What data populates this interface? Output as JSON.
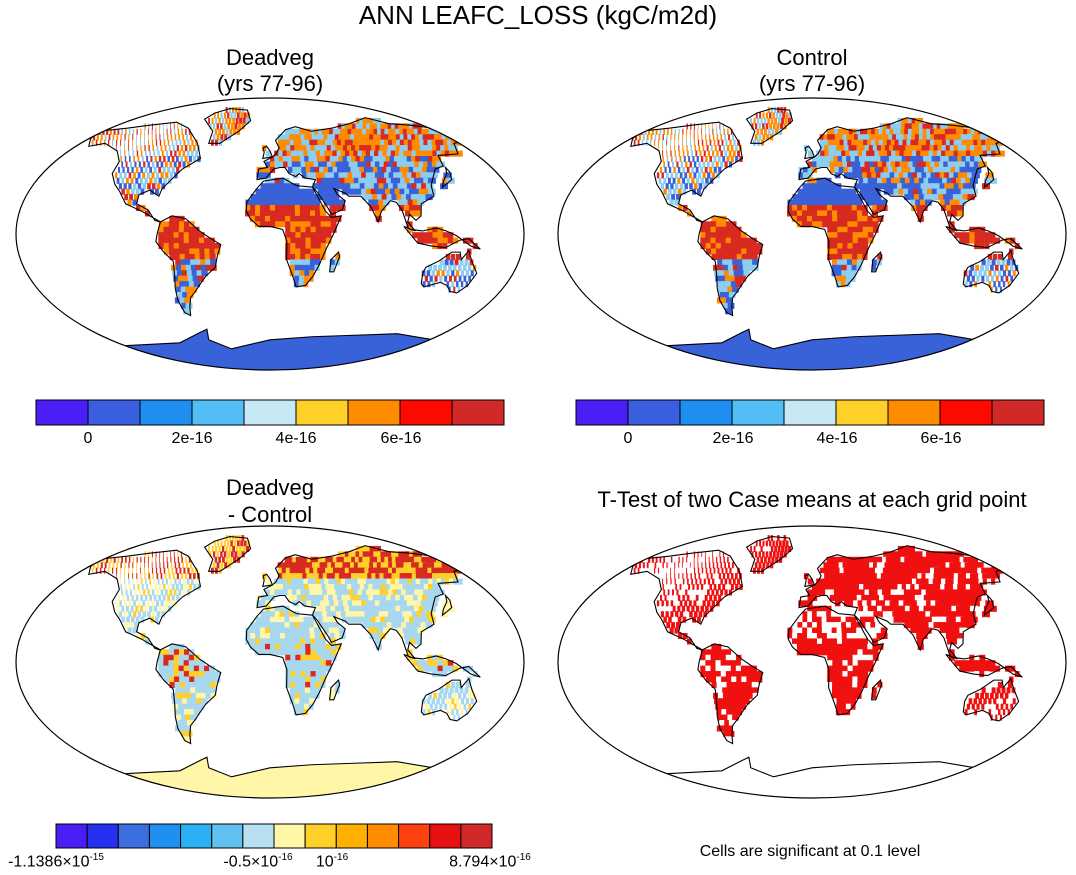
{
  "title": "ANN LEAFC_LOSS (kgC/m2d)",
  "panels": {
    "deadveg": {
      "title1": "Deadveg",
      "title2": "(yrs 77-96)"
    },
    "control": {
      "title1": "Control",
      "title2": "(yrs 77-96)"
    },
    "difference": {
      "title1": "Deadveg",
      "title2": "- Control"
    },
    "ttest": {
      "title": "T-Test of two Case means at each grid point",
      "note": "Cells are significant at 0.1 level"
    }
  },
  "colorbar_top": {
    "colors": [
      "#4b1ef5",
      "#3c5ee0",
      "#1e8ff0",
      "#52bef5",
      "#c7e8f5",
      "#ffd02a",
      "#ff8c00",
      "#ff0a00",
      "#d12828"
    ],
    "labels": [
      "0",
      "2e-16",
      "4e-16",
      "6e-16"
    ]
  },
  "colorbar_diff": {
    "colors": [
      "#4b1ef5",
      "#2530f0",
      "#3c6ee0",
      "#1e90f0",
      "#2ab0f5",
      "#60c0ef",
      "#b7e1f2",
      "#fff6a8",
      "#ffd02a",
      "#ffb000",
      "#ff8c00",
      "#ff4010",
      "#e81010",
      "#d12828"
    ],
    "labels": [
      {
        "base": "-1.1386×10",
        "exp": "-15"
      },
      {
        "base": "-0.5×10",
        "exp": "-16"
      },
      {
        "base": "10",
        "exp": "-16"
      },
      {
        "base": "8.794×10",
        "exp": "-16"
      }
    ]
  },
  "map_colors": {
    "deadveg": {
      "ocean": "#ffffff",
      "land": "#3a62d8",
      "hi": "#d82a20",
      "mid": "#ff8c00",
      "lo": "#8ccdf0",
      "antarctica": "#3a62d8"
    },
    "control": {
      "ocean": "#ffffff",
      "land": "#3a62d8",
      "hi": "#d82a20",
      "mid": "#ff8c00",
      "lo": "#8ccdf0",
      "antarctica": "#3a62d8"
    },
    "difference": {
      "ocean": "#ffffff",
      "land": "#a8d8f0",
      "hi": "#d82a20",
      "mid": "#ffd02a",
      "lo": "#fff6a8",
      "antarctica": "#fff6a8"
    },
    "ttest": {
      "ocean": "#ffffff",
      "land": "#f01010",
      "hi": "#f01010",
      "mid": "#ffffff",
      "lo": "#f01010",
      "antarctica": "#ffffff"
    }
  }
}
